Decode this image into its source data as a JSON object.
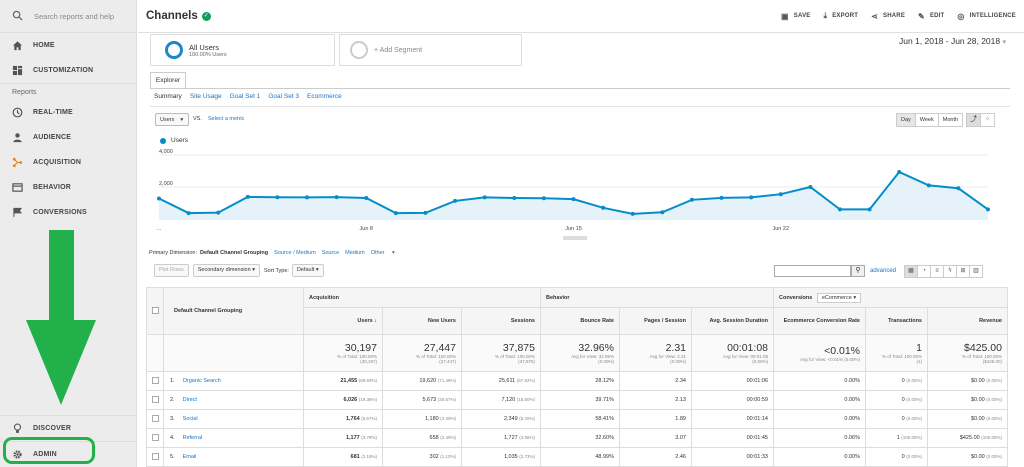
{
  "sidebar": {
    "search_placeholder": "Search reports and help",
    "items_top": [
      {
        "label": "HOME"
      },
      {
        "label": "CUSTOMIZATION"
      }
    ],
    "reports_label": "Reports",
    "reports_items": [
      {
        "label": "REAL-TIME"
      },
      {
        "label": "AUDIENCE"
      },
      {
        "label": "ACQUISITION"
      },
      {
        "label": "BEHAVIOR"
      },
      {
        "label": "CONVERSIONS"
      }
    ],
    "discover": "DISCOVER",
    "admin": "ADMIN",
    "arrow_color": "#22b04b"
  },
  "header": {
    "title": "Channels",
    "save": "SAVE",
    "export": "EXPORT",
    "share": "SHARE",
    "edit": "EDIT",
    "intelligence": "INTELLIGENCE"
  },
  "segments": {
    "active_name": "All Users",
    "active_pct": "100.00% Users",
    "add": "+ Add Segment"
  },
  "date_range": "Jun 1, 2018 - Jun 28, 2018",
  "explorer": {
    "tab": "Explorer",
    "subtabs": [
      "Summary",
      "Site Usage",
      "Goal Set 1",
      "Goal Set 3",
      "Ecommerce"
    ]
  },
  "chart_controls": {
    "metric": "Users",
    "vs": "VS.",
    "select_metric": "Select a metric",
    "granularity": [
      "Day",
      "Week",
      "Month"
    ],
    "series_label": "Users"
  },
  "chart_data": {
    "type": "area",
    "series": [
      {
        "name": "Users",
        "values": [
          1280,
          370,
          400,
          1380,
          1360,
          1350,
          1370,
          1310,
          370,
          380,
          1130,
          1350,
          1310,
          1300,
          1240,
          700,
          320,
          420,
          1200,
          1320,
          1350,
          1550,
          2000,
          600,
          600,
          2940,
          2100,
          1920,
          600
        ]
      }
    ],
    "x_tick_labels": [
      "...",
      "Jun 8",
      "Jun 15",
      "Jun 22"
    ],
    "y_tick_labels": [
      "4,000",
      "2,000"
    ],
    "ylim": [
      0,
      4000
    ],
    "color": "#058dc7"
  },
  "primary_dimension": {
    "label": "Primary Dimension:",
    "current": "Default Channel Grouping",
    "options": [
      "Source / Medium",
      "Source",
      "Medium",
      "Other"
    ]
  },
  "table_controls": {
    "plot_rows": "Plot Rows",
    "secondary": "Secondary dimension",
    "sort_label": "Sort Type:",
    "sort_value": "Default",
    "advanced": "advanced"
  },
  "table": {
    "col_group_acq": "Acquisition",
    "col_group_beh": "Behavior",
    "col_group_conv": "Conversions",
    "conv_select": "eCommerce",
    "dim_header": "Default Channel Grouping",
    "columns": [
      "Users",
      "New Users",
      "Sessions",
      "Bounce Rate",
      "Pages / Session",
      "Avg. Session Duration",
      "Ecommerce Conversion Rate",
      "Transactions",
      "Revenue"
    ],
    "totals": [
      {
        "big": "30,197",
        "s1": "% of Total: 100.00%",
        "s2": "(30,197)"
      },
      {
        "big": "27,447",
        "s1": "% of Total: 100.00%",
        "s2": "(27,447)"
      },
      {
        "big": "37,875",
        "s1": "% of Total: 100.00%",
        "s2": "(37,875)"
      },
      {
        "big": "32.96%",
        "s1": "Avg for View: 32.96%",
        "s2": "(0.00%)"
      },
      {
        "big": "2.31",
        "s1": "Avg for View: 2.31",
        "s2": "(0.00%)"
      },
      {
        "big": "00:01:08",
        "s1": "Avg for View: 00:01:08",
        "s2": "(0.00%)"
      },
      {
        "big": "<0.01%",
        "s1": "Avg for View: <0.01% (0.00%)",
        "s2": ""
      },
      {
        "big": "1",
        "s1": "% of Total: 100.00%",
        "s2": "(1)"
      },
      {
        "big": "$425.00",
        "s1": "% of Total: 100.00%",
        "s2": "($425.00)"
      }
    ],
    "rows": [
      {
        "idx": "1.",
        "name": "Organic Search",
        "users": "21,455",
        "users_p": "(68.93%)",
        "new": "19,620",
        "new_p": "(71.48%)",
        "sess": "25,611",
        "sess_p": "(67.62%)",
        "br": "28.12%",
        "pps": "2.34",
        "dur": "00:01:06",
        "ecr": "0.00%",
        "tr": "0",
        "tr_p": "(0.00%)",
        "rev": "$0.00",
        "rev_p": "(0.00%)"
      },
      {
        "idx": "2.",
        "name": "Direct",
        "users": "6,026",
        "users_p": "(19.36%)",
        "new": "5,673",
        "new_p": "(20.67%)",
        "sess": "7,120",
        "sess_p": "(18.80%)",
        "br": "39.71%",
        "pps": "2.13",
        "dur": "00:00:59",
        "ecr": "0.00%",
        "tr": "0",
        "tr_p": "(0.00%)",
        "rev": "$0.00",
        "rev_p": "(0.00%)"
      },
      {
        "idx": "3.",
        "name": "Social",
        "users": "1,764",
        "users_p": "(5.67%)",
        "new": "1,180",
        "new_p": "(4.30%)",
        "sess": "2,349",
        "sess_p": "(6.20%)",
        "br": "58.41%",
        "pps": "1.89",
        "dur": "00:01:14",
        "ecr": "0.00%",
        "tr": "0",
        "tr_p": "(0.00%)",
        "rev": "$0.00",
        "rev_p": "(0.00%)"
      },
      {
        "idx": "4.",
        "name": "Referral",
        "users": "1,177",
        "users_p": "(3.78%)",
        "new": "658",
        "new_p": "(2.40%)",
        "sess": "1,727",
        "sess_p": "(4.56%)",
        "br": "32.60%",
        "pps": "3.07",
        "dur": "00:01:45",
        "ecr": "0.06%",
        "tr": "1",
        "tr_p": "(100.00%)",
        "rev": "$425.00",
        "rev_p": "(100.00%)"
      },
      {
        "idx": "5.",
        "name": "Email",
        "users": "681",
        "users_p": "(2.19%)",
        "new": "302",
        "new_p": "(1.10%)",
        "sess": "1,035",
        "sess_p": "(2.73%)",
        "br": "48.99%",
        "pps": "2.46",
        "dur": "00:01:33",
        "ecr": "0.00%",
        "tr": "0",
        "tr_p": "(0.00%)",
        "rev": "$0.00",
        "rev_p": "(0.00%)"
      }
    ]
  }
}
